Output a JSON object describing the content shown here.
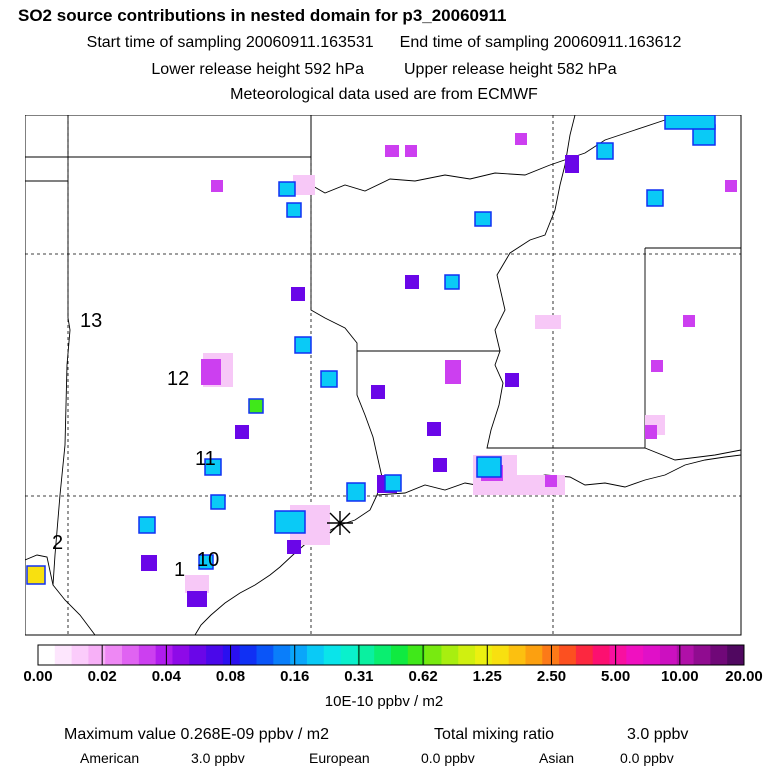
{
  "header": {
    "title": "SO2 source contributions in nested domain for p3_20060911",
    "start_time": "Start time of sampling 20060911.163531",
    "end_time": "End time of sampling 20060911.163612",
    "lower_height": "Lower release height  592 hPa",
    "upper_height": "Upper release height  582 hPa",
    "met_data": "Meteorological data used are from ECMWF"
  },
  "map": {
    "labels": [
      "13",
      "12",
      "11",
      "2",
      "1",
      "10"
    ],
    "marker": "release-site-star"
  },
  "colorbar": {
    "ticks": [
      "0.00",
      "0.02",
      "0.04",
      "0.08",
      "0.16",
      "0.31",
      "0.62",
      "1.25",
      "2.50",
      "5.00",
      "10.00",
      "20.00"
    ],
    "units": "10E-10 ppbv / m2",
    "colors": [
      "#ffffff",
      "#fde6fd",
      "#fbccfb",
      "#f7b0f7",
      "#ee88f4",
      "#e063f2",
      "#cc3ff0",
      "#b01cee",
      "#8e0ae8",
      "#6a06e8",
      "#4a08ea",
      "#2a10f0",
      "#1030f4",
      "#0a55f8",
      "#0a7efa",
      "#0aa6fa",
      "#0acaf6",
      "#0ae4ea",
      "#0af0cc",
      "#0af0a0",
      "#0aee70",
      "#10ea40",
      "#40e81a",
      "#78ea10",
      "#a8ee10",
      "#d0f010",
      "#ecf010",
      "#f8e010",
      "#fcc010",
      "#fca010",
      "#fc7a18",
      "#fc5020",
      "#fc2840",
      "#fc1070",
      "#f810a0",
      "#f010c0",
      "#e010c8",
      "#cc10c0",
      "#b010a8",
      "#900c90",
      "#700878",
      "#500860"
    ]
  },
  "footer": {
    "max_value": "Maximum value  0.268E-09 ppbv / m2",
    "total_label": "Total mixing ratio",
    "total_value": "3.0 ppbv",
    "american_label": "American",
    "american_value": "3.0 ppbv",
    "european_label": "European",
    "european_value": "0.0 ppbv",
    "asian_label": "Asian",
    "asian_value": "0.0 ppbv"
  }
}
